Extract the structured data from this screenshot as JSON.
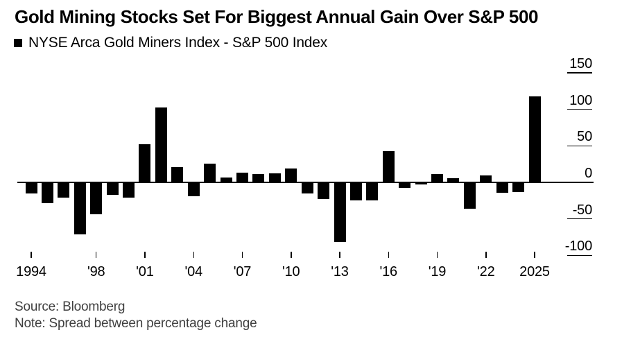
{
  "header": {
    "title": "Gold Mining Stocks Set For Biggest Annual Gain Over S&P 500",
    "legend_label": "NYSE Arca Gold Miners Index - S&P 500 Index",
    "legend_color": "#000000"
  },
  "chart_data": {
    "type": "bar",
    "title": "Gold Mining Stocks Set For Biggest Annual Gain Over S&P 500",
    "series_name": "NYSE Arca Gold Miners Index - S&P 500 Index",
    "x": [
      1994,
      1995,
      1996,
      1997,
      1998,
      1999,
      2000,
      2001,
      2002,
      2003,
      2004,
      2005,
      2006,
      2007,
      2008,
      2009,
      2010,
      2011,
      2012,
      2013,
      2014,
      2015,
      2016,
      2017,
      2018,
      2019,
      2020,
      2021,
      2022,
      2023,
      2024,
      2025
    ],
    "values": [
      -15,
      -28,
      -21,
      -71,
      -44,
      -17,
      -21,
      52,
      103,
      21,
      -19,
      26,
      7,
      13,
      11,
      12,
      19,
      -15,
      -23,
      -82,
      -25,
      -25,
      43,
      -8,
      -3,
      11,
      6,
      -36,
      10,
      -14,
      -13,
      118
    ],
    "bar_color": "#000000",
    "baseline": 0,
    "ylim": [
      -100,
      150
    ],
    "yticks": [
      150,
      100,
      50,
      0,
      -50,
      -100
    ],
    "xticks": [
      {
        "year": 1994,
        "label": "1994"
      },
      {
        "year": 1998,
        "label": "'98"
      },
      {
        "year": 2001,
        "label": "'01"
      },
      {
        "year": 2004,
        "label": "'04"
      },
      {
        "year": 2007,
        "label": "'07"
      },
      {
        "year": 2010,
        "label": "'10"
      },
      {
        "year": 2013,
        "label": "'13"
      },
      {
        "year": 2016,
        "label": "'16"
      },
      {
        "year": 2019,
        "label": "'19"
      },
      {
        "year": 2022,
        "label": "'22"
      },
      {
        "year": 2025,
        "label": "2025"
      }
    ],
    "grid": "right-tick-dashes",
    "legend_position": "top-left",
    "ylabel": "",
    "xlabel": ""
  },
  "footer": {
    "source": "Source: Bloomberg",
    "note": "Note: Spread between percentage change"
  }
}
